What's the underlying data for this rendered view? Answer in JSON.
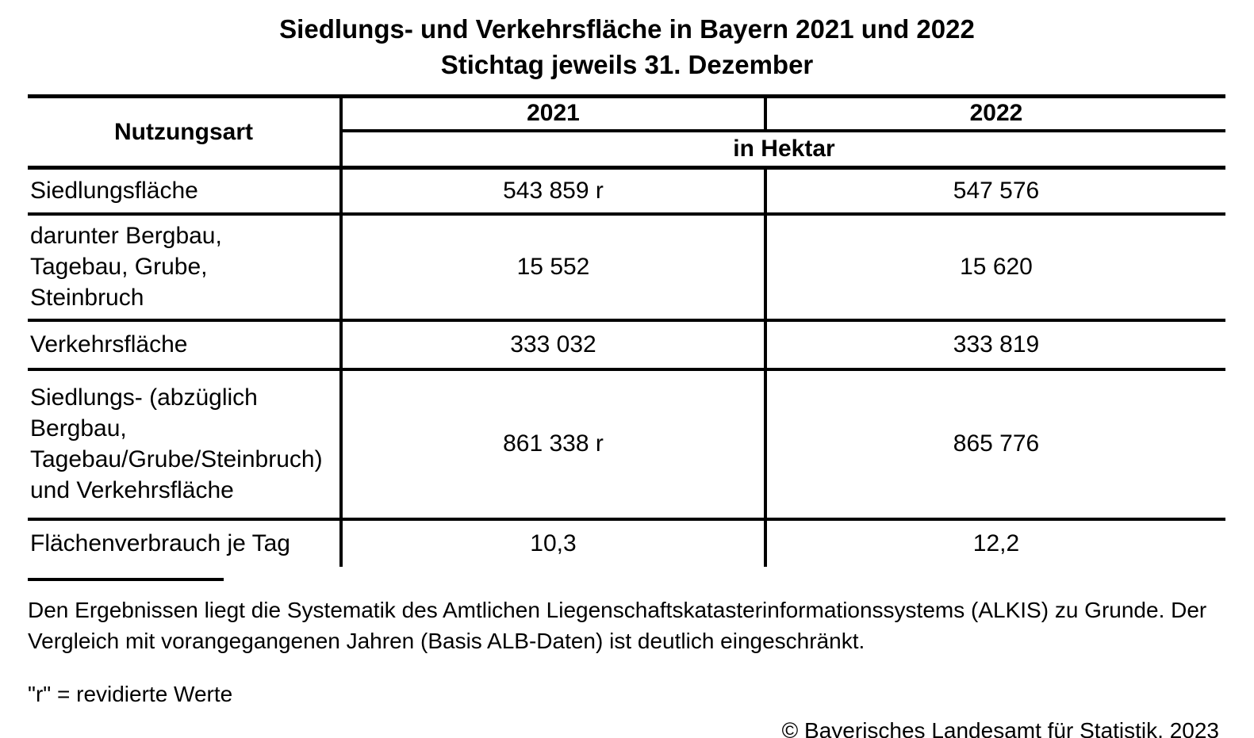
{
  "title": {
    "line1": "Siedlungs- und Verkehrsfläche in Bayern 2021 und 2022",
    "line2": "Stichtag jeweils 31. Dezember"
  },
  "table": {
    "header": {
      "category_column": "Nutzungsart",
      "year_2021": "2021",
      "year_2022": "2022",
      "unit": "in Hektar"
    },
    "rows": [
      {
        "label": "Siedlungsfläche",
        "v2021": "543 859 r",
        "v2022": "547 576"
      },
      {
        "label": [
          "darunter Bergbau,",
          "Tagebau, Grube,",
          "Steinbruch"
        ],
        "v2021": "15 552",
        "v2022": "15 620"
      },
      {
        "label": "Verkehrsfläche",
        "v2021": "333 032",
        "v2022": "333 819"
      },
      {
        "label": [
          "Siedlungs- (abzüglich",
          "Bergbau,",
          "Tagebau/Grube/Steinbruch)",
          "und Verkehrsfläche"
        ],
        "v2021": "861 338 r",
        "v2022": "865 776"
      },
      {
        "label": "Flächenverbrauch je Tag",
        "v2021": "10,3",
        "v2022": "12,2"
      }
    ]
  },
  "footnotes": {
    "method_note": [
      "Den Ergebnissen liegt die Systematik des Amtlichen Liegenschaftskatasterinformationssystems (ALKIS) zu Grunde. Der",
      "Vergleich mit vorangegangenen Jahren (Basis ALB-Daten) ist deutlich eingeschränkt."
    ],
    "revision_note": "\"r\" = revidierte Werte",
    "copyright": "© Bayerisches Landesamt für Statistik, 2023"
  },
  "colors": {
    "text": "#000000",
    "background": "#ffffff",
    "border": "#000000"
  }
}
